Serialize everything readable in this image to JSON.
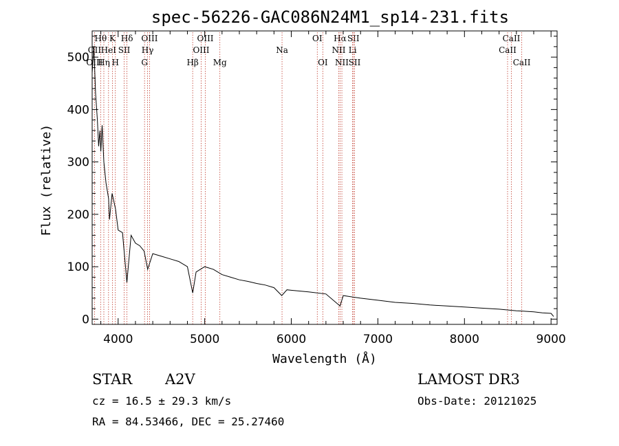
{
  "chart_data": {
    "type": "line",
    "title": "spec-56226-GAC086N24M1_sp14-231.fits",
    "xlabel": "Wavelength (Å)",
    "ylabel": "Flux (relative)",
    "xlim": [
      3700,
      9070
    ],
    "ylim": [
      -10,
      550
    ],
    "xticks": [
      4000,
      5000,
      6000,
      7000,
      8000,
      9000
    ],
    "yticks": [
      0,
      100,
      200,
      300,
      400,
      500
    ],
    "spectrum": {
      "x": [
        3700,
        3720,
        3740,
        3760,
        3775,
        3790,
        3800,
        3815,
        3835,
        3860,
        3890,
        3900,
        3930,
        3970,
        4000,
        4050,
        4101,
        4150,
        4200,
        4250,
        4300,
        4341,
        4400,
        4500,
        4600,
        4700,
        4800,
        4861,
        4900,
        5000,
        5100,
        5200,
        5300,
        5400,
        5500,
        5600,
        5700,
        5800,
        5890,
        5950,
        6000,
        6200,
        6400,
        6563,
        6600,
        6800,
        7000,
        7200,
        7400,
        7600,
        7800,
        8000,
        8200,
        8400,
        8600,
        8800,
        8900,
        9000,
        9030
      ],
      "y": [
        470,
        520,
        430,
        380,
        330,
        360,
        320,
        370,
        300,
        260,
        230,
        190,
        240,
        210,
        170,
        165,
        70,
        160,
        145,
        140,
        130,
        95,
        125,
        120,
        115,
        110,
        100,
        50,
        90,
        100,
        95,
        85,
        80,
        75,
        72,
        68,
        65,
        60,
        45,
        56,
        55,
        52,
        48,
        25,
        45,
        40,
        36,
        32,
        30,
        27,
        25,
        23,
        21,
        19,
        16,
        14,
        12,
        11,
        5
      ]
    },
    "line_markers": [
      {
        "label": "Hθ",
        "x": 3798,
        "row": 1
      },
      {
        "label": "K",
        "x": 3934,
        "row": 1
      },
      {
        "label": "Hδ",
        "x": 4102,
        "row": 1
      },
      {
        "label": "OIII",
        "x": 4363,
        "row": 1
      },
      {
        "label": "OIII",
        "x": 5007,
        "row": 1
      },
      {
        "label": "OI",
        "x": 6300,
        "row": 1
      },
      {
        "label": "Hα",
        "x": 6563,
        "row": 1
      },
      {
        "label": "SII",
        "x": 6717,
        "row": 1
      },
      {
        "label": "CaII",
        "x": 8542,
        "row": 1
      },
      {
        "label": "OII",
        "x": 3727,
        "row": 2
      },
      {
        "label": "HeI",
        "x": 3889,
        "row": 2
      },
      {
        "label": "SII",
        "x": 4070,
        "row": 2
      },
      {
        "label": "Hγ",
        "x": 4340,
        "row": 2
      },
      {
        "label": "OIII",
        "x": 4959,
        "row": 2
      },
      {
        "label": "Na",
        "x": 5893,
        "row": 2
      },
      {
        "label": "NII",
        "x": 6548,
        "row": 2
      },
      {
        "label": "Li",
        "x": 6708,
        "row": 2
      },
      {
        "label": "CaII",
        "x": 8498,
        "row": 2
      },
      {
        "label": "OIII",
        "x": 3727,
        "row": 3
      },
      {
        "label": "Hη",
        "x": 3835,
        "row": 3
      },
      {
        "label": "H",
        "x": 3968,
        "row": 3
      },
      {
        "label": "G",
        "x": 4305,
        "row": 3
      },
      {
        "label": "Hβ",
        "x": 4861,
        "row": 3
      },
      {
        "label": "Mg",
        "x": 5175,
        "row": 3
      },
      {
        "label": "OI",
        "x": 6364,
        "row": 3
      },
      {
        "label": "NII",
        "x": 6584,
        "row": 3
      },
      {
        "label": "SII",
        "x": 6731,
        "row": 3
      },
      {
        "label": "CaII",
        "x": 8662,
        "row": 3
      }
    ]
  },
  "info": {
    "object_class": "STAR",
    "subclass": "A2V",
    "survey": "LAMOST DR3",
    "redshift": "cz = 16.5 ± 29.3 km/s",
    "obs_date": "Obs-Date: 20121025",
    "coords": "RA =  84.53466, DEC =  25.27460"
  }
}
